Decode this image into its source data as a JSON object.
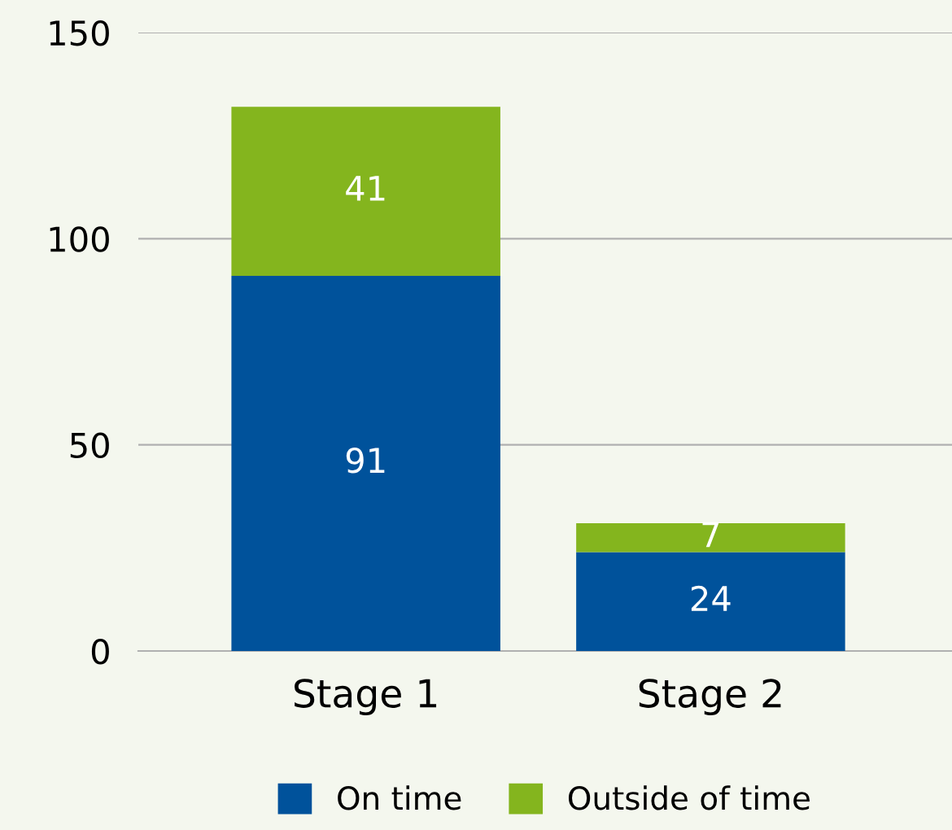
{
  "chart_data": {
    "type": "bar",
    "stacked": true,
    "categories": [
      "Stage 1",
      "Stage 2"
    ],
    "series": [
      {
        "name": "On time",
        "color": "#00529b",
        "values": [
          91,
          24
        ]
      },
      {
        "name": "Outside of time",
        "color": "#84b51e",
        "values": [
          41,
          7
        ]
      }
    ],
    "ylim": [
      0,
      150
    ],
    "yticks": [
      0,
      50,
      100,
      150
    ],
    "grid": "y",
    "legend": "bottom",
    "data_labels": true
  }
}
